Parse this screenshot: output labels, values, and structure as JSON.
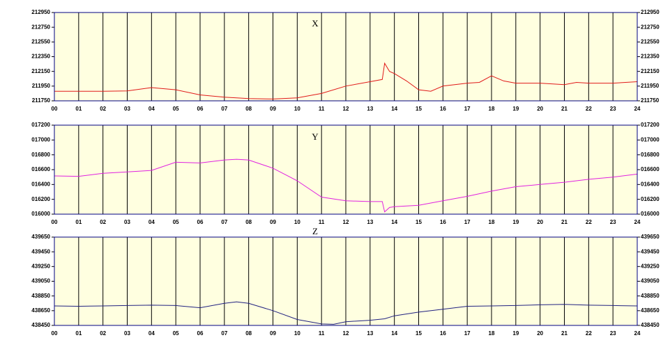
{
  "chart_data": [
    {
      "type": "line",
      "title": "X",
      "color": "#e01818",
      "grid": true,
      "x": [
        0,
        1,
        2,
        3,
        4,
        5,
        6,
        7,
        8,
        9,
        10,
        11,
        12,
        13,
        13.5,
        13.6,
        13.8,
        14,
        14.5,
        15,
        15.5,
        16,
        17,
        17.5,
        18,
        18.5,
        19,
        20,
        21,
        21.5,
        22,
        23,
        24
      ],
      "values": [
        211880,
        211880,
        211880,
        211885,
        211930,
        211900,
        211830,
        211800,
        211780,
        211775,
        211790,
        211850,
        211950,
        212010,
        212040,
        212260,
        212150,
        212120,
        212020,
        211900,
        211880,
        211950,
        211990,
        212000,
        212090,
        212020,
        211990,
        211990,
        211970,
        212000,
        211990,
        211990,
        212010
      ],
      "xlim": [
        0,
        24
      ],
      "xticks": [
        {
          "value": 0,
          "label": "00"
        },
        {
          "value": 1,
          "label": "01"
        },
        {
          "value": 2,
          "label": "02"
        },
        {
          "value": 3,
          "label": "03"
        },
        {
          "value": 4,
          "label": "04"
        },
        {
          "value": 5,
          "label": "05"
        },
        {
          "value": 6,
          "label": "06"
        },
        {
          "value": 7,
          "label": "07"
        },
        {
          "value": 8,
          "label": "08"
        },
        {
          "value": 9,
          "label": "09"
        },
        10,
        11,
        12,
        13,
        14,
        15,
        16,
        17,
        18,
        19,
        20,
        21,
        22,
        23,
        24
      ],
      "ylim": [
        211750,
        212950
      ],
      "yticks": [
        211750,
        211950,
        212150,
        212350,
        212550,
        212750,
        212950
      ]
    },
    {
      "type": "line",
      "title": "Y",
      "color": "#e020e0",
      "grid": true,
      "x": [
        0,
        1,
        2,
        3,
        4,
        5,
        6,
        7,
        7.5,
        8,
        9,
        10,
        11,
        12,
        13,
        13.5,
        13.6,
        13.8,
        14,
        15,
        16,
        17,
        18,
        19,
        20,
        21,
        22,
        23,
        24
      ],
      "values": [
        16516,
        16510,
        16550,
        16570,
        16590,
        16700,
        16690,
        16730,
        16740,
        16730,
        16620,
        16450,
        16230,
        16180,
        16170,
        16170,
        16030,
        16090,
        16100,
        16120,
        16180,
        16240,
        16310,
        16370,
        16400,
        16430,
        16470,
        16500,
        16540
      ],
      "xlim": [
        0,
        24
      ],
      "xticks": [
        {
          "value": 0,
          "label": "00"
        },
        {
          "value": 1,
          "label": "01"
        },
        {
          "value": 2,
          "label": "02"
        },
        {
          "value": 3,
          "label": "03"
        },
        {
          "value": 4,
          "label": "04"
        },
        {
          "value": 5,
          "label": "05"
        },
        {
          "value": 6,
          "label": "06"
        },
        {
          "value": 7,
          "label": "07"
        },
        {
          "value": 8,
          "label": "08"
        },
        {
          "value": 9,
          "label": "09"
        },
        10,
        11,
        12,
        13,
        14,
        15,
        16,
        17,
        18,
        19,
        20,
        21,
        22,
        23,
        24
      ],
      "ylim": [
        16000,
        17200
      ],
      "yticks": [
        {
          "value": 16000,
          "label": "016000"
        },
        {
          "value": 16200,
          "label": "016200"
        },
        {
          "value": 16400,
          "label": "016400"
        },
        {
          "value": 16600,
          "label": "016600"
        },
        {
          "value": 16800,
          "label": "016800"
        },
        {
          "value": 17000,
          "label": "017000"
        },
        {
          "value": 17200,
          "label": "017200"
        }
      ]
    },
    {
      "type": "line",
      "title": "Z",
      "color": "#202080",
      "grid": true,
      "x": [
        0,
        1,
        2,
        3,
        4,
        5,
        6,
        7,
        7.5,
        8,
        9,
        10,
        11,
        11.5,
        12,
        13,
        13.6,
        14,
        15,
        16,
        17,
        18,
        19,
        20,
        21,
        22,
        23,
        24
      ],
      "values": [
        438715,
        438710,
        438715,
        438720,
        438725,
        438720,
        438690,
        438750,
        438770,
        438750,
        438650,
        438530,
        438470,
        438465,
        438500,
        438520,
        438540,
        438580,
        438630,
        438670,
        438710,
        438715,
        438720,
        438730,
        438735,
        438725,
        438720,
        438715
      ],
      "xlim": [
        0,
        24
      ],
      "xticks": [
        {
          "value": 0,
          "label": "00"
        },
        {
          "value": 1,
          "label": "01"
        },
        {
          "value": 2,
          "label": "02"
        },
        {
          "value": 3,
          "label": "03"
        },
        {
          "value": 4,
          "label": "04"
        },
        {
          "value": 5,
          "label": "05"
        },
        {
          "value": 6,
          "label": "06"
        },
        {
          "value": 7,
          "label": "07"
        },
        {
          "value": 8,
          "label": "08"
        },
        {
          "value": 9,
          "label": "09"
        },
        10,
        11,
        12,
        13,
        14,
        15,
        16,
        17,
        18,
        19,
        20,
        21,
        22,
        23,
        24
      ],
      "ylim": [
        438450,
        439650
      ],
      "yticks": [
        438450,
        438650,
        438850,
        439050,
        439250,
        439450,
        439650
      ]
    }
  ]
}
